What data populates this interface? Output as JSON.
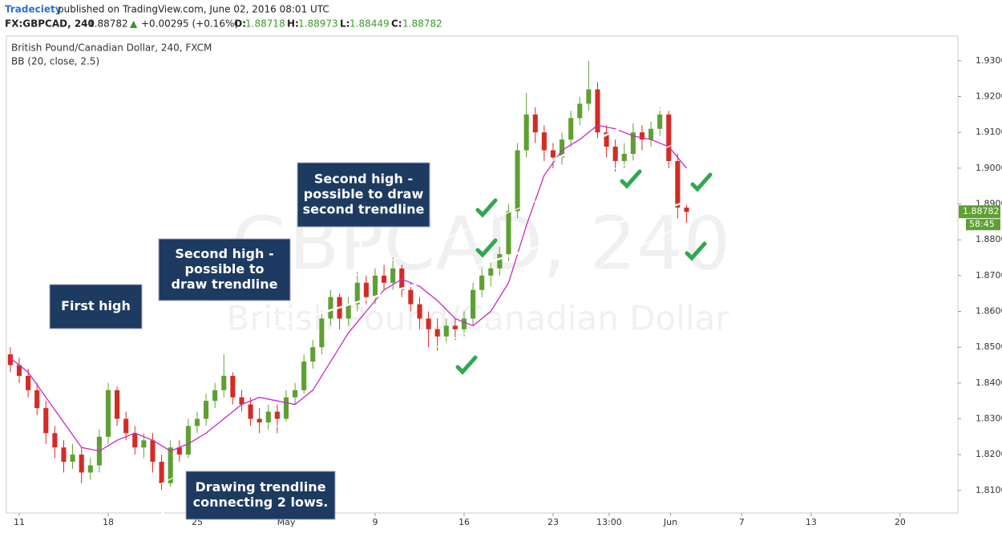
{
  "header": {
    "author": "Tradeciety",
    "published": "published on TradingView.com, June 02, 2016 08:01 UTC",
    "symbol": "FX:GBPCAD, 240",
    "last": "1.88782",
    "arrow": "▲",
    "change": "+0.00295 (+0.16%)",
    "o_label": "O:",
    "o": "1.88718",
    "h_label": "H:",
    "h": "1.88973",
    "l_label": "L:",
    "l": "1.88449",
    "c_label": "C:",
    "c": "1.88782"
  },
  "chart_data": {
    "type": "candlestick",
    "legend": [
      "British Pound/Canadian Dollar, 240, FXCM",
      "BB (20, close, 2.5)"
    ],
    "watermark": [
      "GBPCAD, 240",
      "British Pound/Canadian Dollar"
    ],
    "up_color": "#5ea032",
    "down_color": "#d42b26",
    "x": [
      -1,
      0,
      1,
      2,
      3,
      4,
      5,
      6,
      7,
      8,
      9,
      10,
      11,
      12,
      13,
      14,
      15,
      16,
      17,
      18,
      19,
      20,
      21,
      22,
      23,
      24,
      25,
      26,
      27,
      28,
      29,
      30,
      31,
      32,
      33,
      34,
      35,
      36,
      37,
      38,
      39,
      40,
      41,
      42,
      43,
      44,
      45,
      46,
      47,
      48,
      49,
      50,
      51,
      52,
      53,
      54,
      55,
      56,
      57,
      58,
      59,
      60,
      61,
      62,
      63,
      64,
      65,
      66,
      67,
      68,
      69,
      70,
      71,
      72,
      73,
      74,
      75
    ],
    "open": [
      1.848,
      1.845,
      1.842,
      1.838,
      1.833,
      1.826,
      1.822,
      1.818,
      1.82,
      1.815,
      1.817,
      1.825,
      1.838,
      1.83,
      1.826,
      1.822,
      1.824,
      1.818,
      1.812,
      1.822,
      1.82,
      1.828,
      1.83,
      1.835,
      1.838,
      1.842,
      1.836,
      1.834,
      1.83,
      1.829,
      1.832,
      1.83,
      1.836,
      1.838,
      1.846,
      1.85,
      1.858,
      1.864,
      1.858,
      1.862,
      1.868,
      1.864,
      1.87,
      1.868,
      1.872,
      1.866,
      1.862,
      1.858,
      1.855,
      1.853,
      1.856,
      1.855,
      1.858,
      1.866,
      1.87,
      1.872,
      1.876,
      1.888,
      1.905,
      1.915,
      1.91,
      1.905,
      1.903,
      1.908,
      1.914,
      1.918,
      1.922,
      1.91,
      1.906,
      1.902,
      1.904,
      1.91,
      1.908,
      1.911,
      1.915,
      1.902,
      1.889
    ],
    "high": [
      1.85,
      1.847,
      1.844,
      1.84,
      1.835,
      1.828,
      1.824,
      1.823,
      1.822,
      1.819,
      1.827,
      1.84,
      1.839,
      1.832,
      1.828,
      1.826,
      1.826,
      1.82,
      1.824,
      1.824,
      1.83,
      1.832,
      1.837,
      1.84,
      1.848,
      1.843,
      1.838,
      1.836,
      1.833,
      1.834,
      1.834,
      1.838,
      1.84,
      1.848,
      1.852,
      1.86,
      1.866,
      1.865,
      1.864,
      1.871,
      1.87,
      1.872,
      1.873,
      1.875,
      1.873,
      1.868,
      1.864,
      1.86,
      1.858,
      1.858,
      1.858,
      1.86,
      1.868,
      1.872,
      1.874,
      1.878,
      1.89,
      1.907,
      1.921,
      1.917,
      1.912,
      1.907,
      1.91,
      1.916,
      1.92,
      1.93,
      1.924,
      1.912,
      1.908,
      1.907,
      1.913,
      1.912,
      1.913,
      1.917,
      1.916,
      1.904,
      1.8897
    ],
    "low": [
      1.843,
      1.84,
      1.836,
      1.831,
      1.823,
      1.819,
      1.815,
      1.816,
      1.812,
      1.813,
      1.815,
      1.823,
      1.828,
      1.824,
      1.82,
      1.819,
      1.815,
      1.81,
      1.811,
      1.818,
      1.819,
      1.826,
      1.828,
      1.833,
      1.836,
      1.834,
      1.832,
      1.828,
      1.826,
      1.827,
      1.826,
      1.829,
      1.834,
      1.837,
      1.844,
      1.848,
      1.856,
      1.855,
      1.856,
      1.86,
      1.862,
      1.862,
      1.866,
      1.866,
      1.864,
      1.86,
      1.855,
      1.85,
      1.849,
      1.851,
      1.852,
      1.853,
      1.856,
      1.864,
      1.867,
      1.87,
      1.874,
      1.886,
      1.903,
      1.907,
      1.902,
      1.9,
      1.901,
      1.906,
      1.912,
      1.916,
      1.908,
      1.903,
      1.899,
      1.9,
      1.902,
      1.905,
      1.906,
      1.909,
      1.9,
      1.886,
      1.8845
    ],
    "close": [
      1.845,
      1.842,
      1.838,
      1.833,
      1.826,
      1.822,
      1.818,
      1.82,
      1.815,
      1.817,
      1.825,
      1.838,
      1.83,
      1.826,
      1.822,
      1.824,
      1.818,
      1.812,
      1.822,
      1.82,
      1.828,
      1.83,
      1.835,
      1.838,
      1.842,
      1.836,
      1.834,
      1.83,
      1.829,
      1.832,
      1.83,
      1.836,
      1.838,
      1.846,
      1.85,
      1.858,
      1.864,
      1.858,
      1.862,
      1.868,
      1.864,
      1.87,
      1.868,
      1.872,
      1.866,
      1.862,
      1.858,
      1.855,
      1.853,
      1.856,
      1.855,
      1.858,
      1.866,
      1.87,
      1.872,
      1.876,
      1.888,
      1.905,
      1.915,
      1.91,
      1.905,
      1.903,
      1.908,
      1.914,
      1.918,
      1.922,
      1.91,
      1.906,
      1.902,
      1.904,
      1.91,
      1.908,
      1.911,
      1.915,
      1.902,
      1.889,
      1.8878
    ],
    "bb": {
      "color": "#c42bc4",
      "x": [
        -1,
        1,
        3,
        5,
        7,
        9,
        11,
        13,
        15,
        17,
        19,
        21,
        23,
        25,
        27,
        29,
        31,
        33,
        35,
        37,
        39,
        41,
        43,
        45,
        47,
        49,
        51,
        53,
        55,
        57,
        59,
        61,
        63,
        65,
        67,
        69,
        71,
        73,
        75
      ],
      "values": [
        1.847,
        1.843,
        1.836,
        1.829,
        1.822,
        1.821,
        1.824,
        1.826,
        1.824,
        1.821,
        1.823,
        1.826,
        1.83,
        1.834,
        1.836,
        1.835,
        1.834,
        1.838,
        1.846,
        1.854,
        1.86,
        1.866,
        1.869,
        1.867,
        1.863,
        1.858,
        1.856,
        1.86,
        1.868,
        1.884,
        1.898,
        1.905,
        1.908,
        1.912,
        1.911,
        1.909,
        1.908,
        1.906,
        1.9
      ]
    },
    "xlim": [
      -1.44,
      105.5
    ],
    "xticks": [
      {
        "value": 0,
        "label": "11"
      },
      {
        "value": 10,
        "label": "18"
      },
      {
        "value": 20,
        "label": "25"
      },
      {
        "value": 30,
        "label": "May"
      },
      {
        "value": 40,
        "label": "9"
      },
      {
        "value": 50,
        "label": "16"
      },
      {
        "value": 60,
        "label": "23"
      },
      {
        "value": 66.3,
        "label": "13:00"
      },
      {
        "value": 73.2,
        "label": "Jun"
      },
      {
        "value": 81.2,
        "label": "7"
      },
      {
        "value": 89,
        "label": "13"
      },
      {
        "value": 99,
        "label": "20"
      }
    ],
    "ylim": [
      1.8037,
      1.9369
    ],
    "yticks": [
      {
        "value": 1.81,
        "label": "1.81000"
      },
      {
        "value": 1.82,
        "label": "1.82000"
      },
      {
        "value": 1.83,
        "label": "1.83000"
      },
      {
        "value": 1.84,
        "label": "1.84000"
      },
      {
        "value": 1.85,
        "label": "1.85000"
      },
      {
        "value": 1.86,
        "label": "1.86000"
      },
      {
        "value": 1.87,
        "label": "1.87000"
      },
      {
        "value": 1.88,
        "label": "1.88000"
      },
      {
        "value": 1.89,
        "label": "1.89000"
      },
      {
        "value": 1.9,
        "label": "1.90000"
      },
      {
        "value": 1.91,
        "label": "1.91000"
      },
      {
        "value": 1.92,
        "label": "1.92000"
      },
      {
        "value": 1.93,
        "label": "1.93000"
      }
    ],
    "price_tag": {
      "value": 1.88782,
      "label": "1.88782"
    },
    "countdown": "58:45",
    "annotations": [
      [
        "First high"
      ],
      [
        "Second high -",
        "possible to",
        "draw trendline"
      ],
      [
        "Second high -",
        "possible to draw",
        "second trendline"
      ],
      [
        "Drawing trendline",
        "connecting 2 lows."
      ]
    ]
  }
}
